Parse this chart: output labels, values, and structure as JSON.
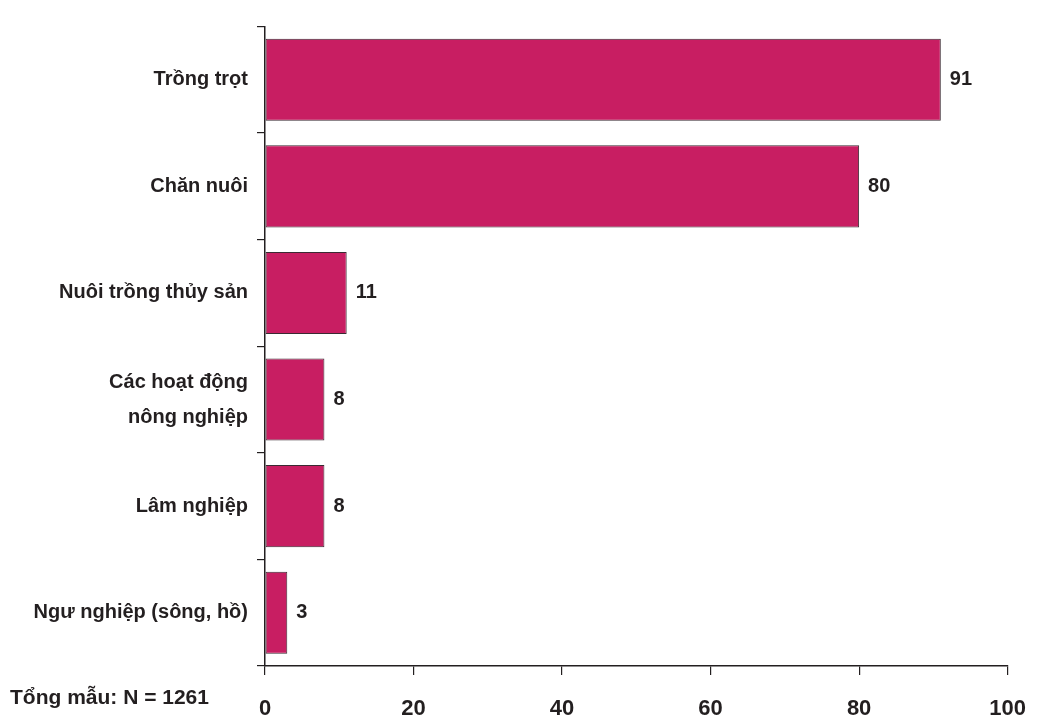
{
  "chart_data": {
    "type": "bar",
    "orientation": "horizontal",
    "categories": [
      "Trồng trọt",
      "Chăn nuôi",
      "Nuôi trồng thủy sản",
      "Các hoạt động nông nghiệp",
      "Lâm nghiệp",
      "Ngư nghiệp (sông, hồ)"
    ],
    "values": [
      91,
      80,
      11,
      8,
      8,
      3
    ],
    "color": "#c81e62",
    "xlim": [
      0,
      100
    ],
    "xticks": [
      0,
      20,
      40,
      60,
      80,
      100
    ],
    "data_labels": true,
    "grid": false,
    "annotations": [
      "Tổng mẫu: N = 1261"
    ]
  }
}
